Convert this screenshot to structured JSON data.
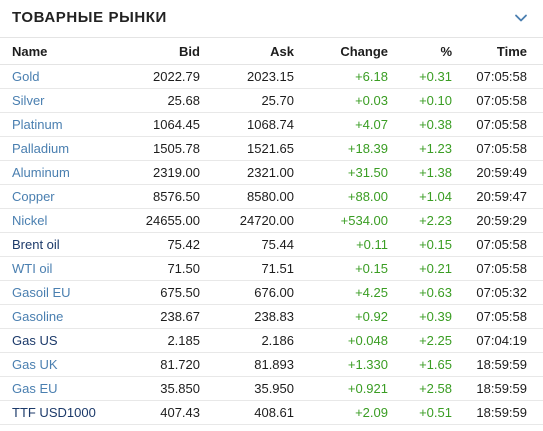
{
  "header": {
    "title": "ТОВАРНЫЕ РЫНКИ",
    "collapse_icon": "chevron-down-icon"
  },
  "colors": {
    "link": "#4a7fb0",
    "link_dark": "#1c3a6a",
    "positive": "#3a9d23",
    "text": "#1d1d1d"
  },
  "columns": {
    "name": "Name",
    "bid": "Bid",
    "ask": "Ask",
    "change": "Change",
    "percent": "%",
    "time": "Time"
  },
  "rows": [
    {
      "name": "Gold",
      "bid": "2022.79",
      "ask": "2023.15",
      "change": "+6.18",
      "percent": "+0.31",
      "time": "07:05:58",
      "style": "light"
    },
    {
      "name": "Silver",
      "bid": "25.68",
      "ask": "25.70",
      "change": "+0.03",
      "percent": "+0.10",
      "time": "07:05:58",
      "style": "light"
    },
    {
      "name": "Platinum",
      "bid": "1064.45",
      "ask": "1068.74",
      "change": "+4.07",
      "percent": "+0.38",
      "time": "07:05:58",
      "style": "light"
    },
    {
      "name": "Palladium",
      "bid": "1505.78",
      "ask": "1521.65",
      "change": "+18.39",
      "percent": "+1.23",
      "time": "07:05:58",
      "style": "light"
    },
    {
      "name": "Aluminum",
      "bid": "2319.00",
      "ask": "2321.00",
      "change": "+31.50",
      "percent": "+1.38",
      "time": "20:59:49",
      "style": "light"
    },
    {
      "name": "Copper",
      "bid": "8576.50",
      "ask": "8580.00",
      "change": "+88.00",
      "percent": "+1.04",
      "time": "20:59:47",
      "style": "light"
    },
    {
      "name": "Nickel",
      "bid": "24655.00",
      "ask": "24720.00",
      "change": "+534.00",
      "percent": "+2.23",
      "time": "20:59:29",
      "style": "light"
    },
    {
      "name": "Brent oil",
      "bid": "75.42",
      "ask": "75.44",
      "change": "+0.11",
      "percent": "+0.15",
      "time": "07:05:58",
      "style": "dark"
    },
    {
      "name": "WTI oil",
      "bid": "71.50",
      "ask": "71.51",
      "change": "+0.15",
      "percent": "+0.21",
      "time": "07:05:58",
      "style": "light"
    },
    {
      "name": "Gasoil EU",
      "bid": "675.50",
      "ask": "676.00",
      "change": "+4.25",
      "percent": "+0.63",
      "time": "07:05:32",
      "style": "light"
    },
    {
      "name": "Gasoline",
      "bid": "238.67",
      "ask": "238.83",
      "change": "+0.92",
      "percent": "+0.39",
      "time": "07:05:58",
      "style": "light"
    },
    {
      "name": "Gas US",
      "bid": "2.185",
      "ask": "2.186",
      "change": "+0.048",
      "percent": "+2.25",
      "time": "07:04:19",
      "style": "dark"
    },
    {
      "name": "Gas UK",
      "bid": "81.720",
      "ask": "81.893",
      "change": "+1.330",
      "percent": "+1.65",
      "time": "18:59:59",
      "style": "light"
    },
    {
      "name": "Gas EU",
      "bid": "35.850",
      "ask": "35.950",
      "change": "+0.921",
      "percent": "+2.58",
      "time": "18:59:59",
      "style": "light"
    },
    {
      "name": "TTF USD1000",
      "bid": "407.43",
      "ask": "408.61",
      "change": "+2.09",
      "percent": "+0.51",
      "time": "18:59:59",
      "style": "dark"
    }
  ]
}
